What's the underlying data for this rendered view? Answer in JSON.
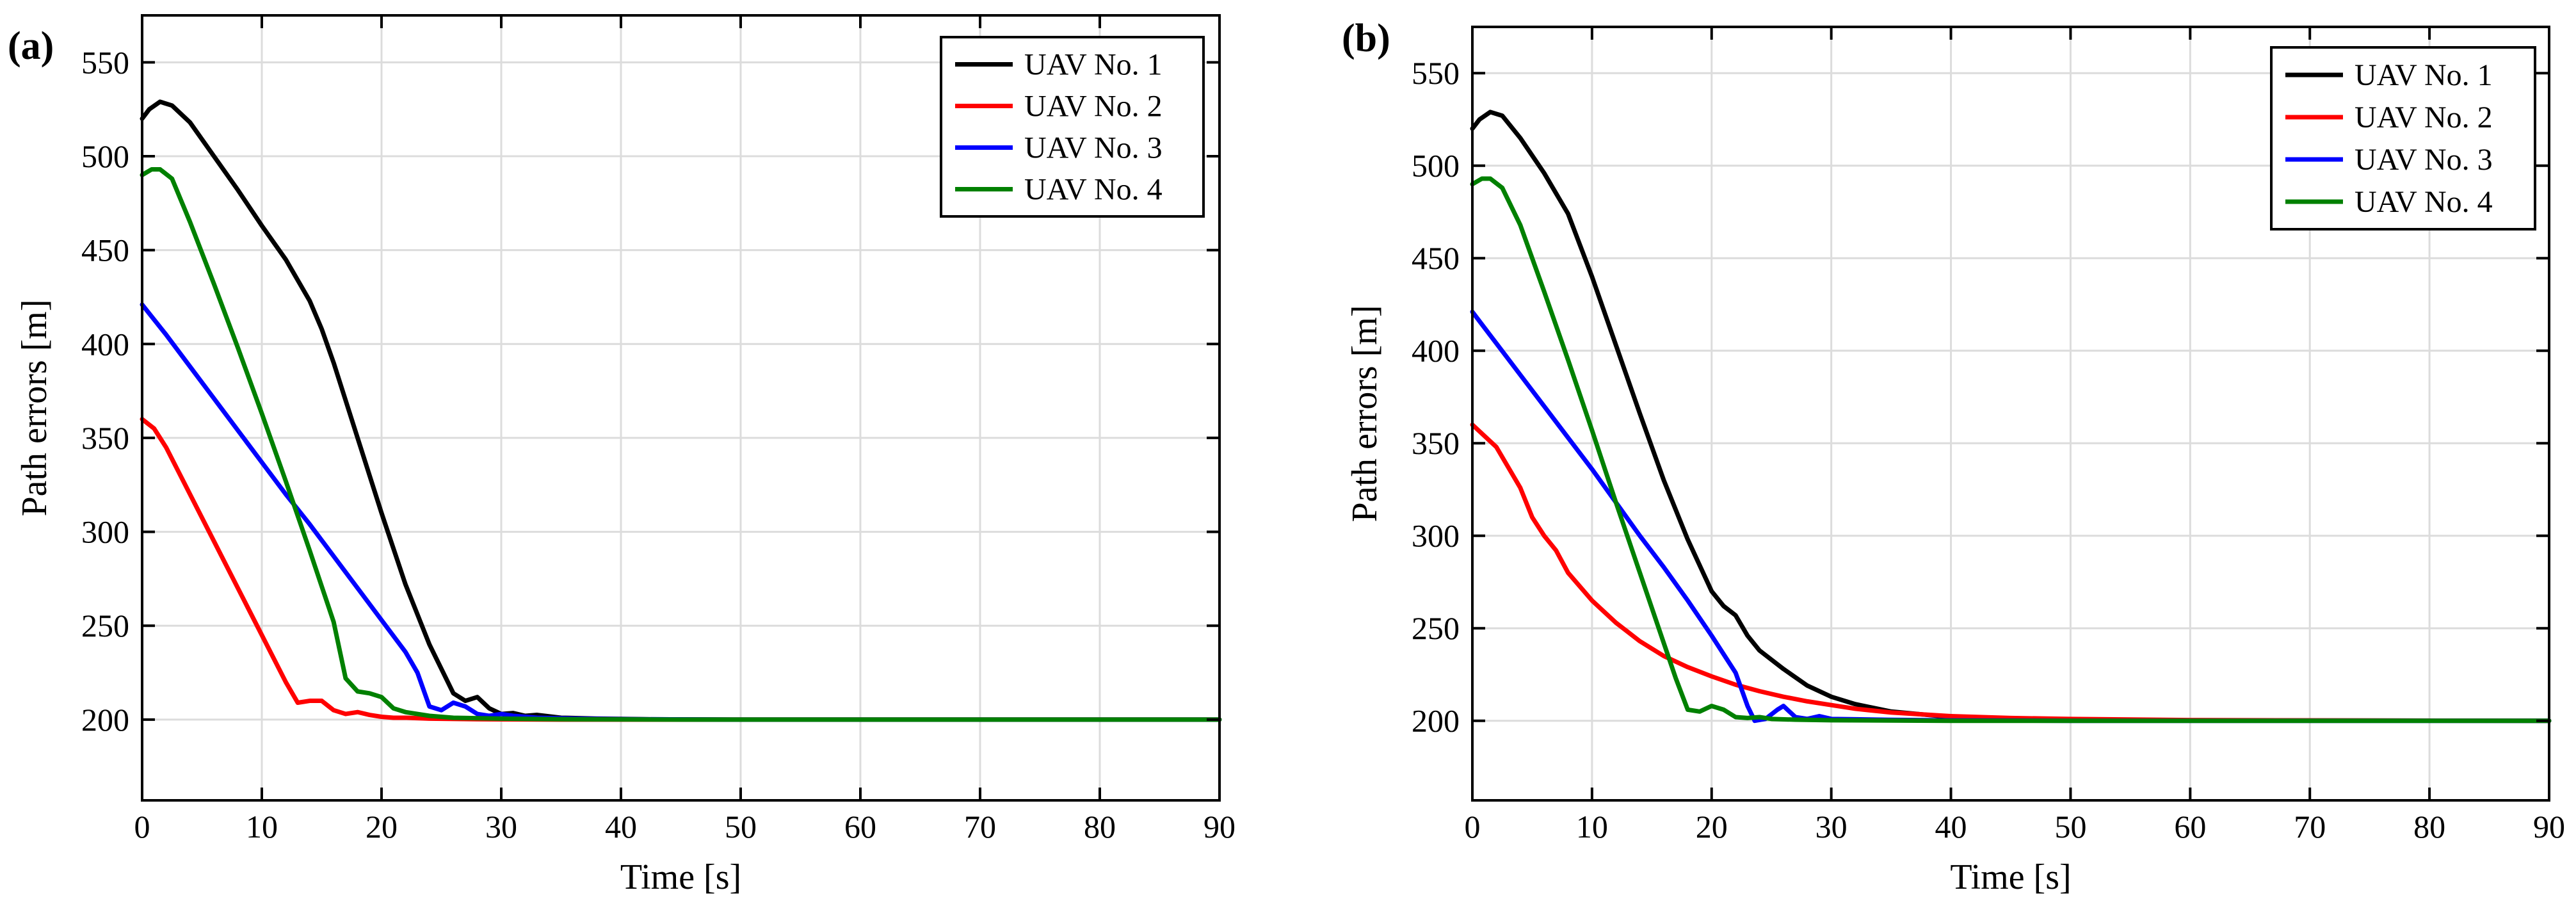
{
  "chart_data": [
    {
      "type": "line",
      "panel_label": "(a)",
      "xlabel": "Time [s]",
      "ylabel": "Path errors [m]",
      "xlim": [
        0,
        90
      ],
      "ylim": [
        157,
        575
      ],
      "xticks": [
        0,
        10,
        20,
        30,
        40,
        50,
        60,
        70,
        80,
        90
      ],
      "yticks": [
        200,
        250,
        300,
        350,
        400,
        450,
        500,
        550
      ],
      "grid": true,
      "legend_position": "top-right",
      "series": [
        {
          "name": "UAV No. 1",
          "color": "#000000",
          "points": [
            [
              0,
              520
            ],
            [
              0.6,
              525
            ],
            [
              1.5,
              529
            ],
            [
              2.5,
              527
            ],
            [
              4,
              518
            ],
            [
              6,
              500
            ],
            [
              8,
              482
            ],
            [
              10,
              463
            ],
            [
              12,
              445
            ],
            [
              14,
              423
            ],
            [
              15,
              408
            ],
            [
              16,
              390
            ],
            [
              18,
              350
            ],
            [
              20,
              310
            ],
            [
              22,
              272
            ],
            [
              24,
              240
            ],
            [
              26,
              214
            ],
            [
              27,
              210
            ],
            [
              28,
              212
            ],
            [
              29,
              206
            ],
            [
              30,
              203
            ],
            [
              31,
              203.5
            ],
            [
              32,
              202
            ],
            [
              33,
              202.5
            ],
            [
              35,
              201
            ],
            [
              38,
              200.5
            ],
            [
              42,
              200.2
            ],
            [
              50,
              200
            ],
            [
              90,
              200
            ]
          ]
        },
        {
          "name": "UAV No. 2",
          "color": "#ff0000",
          "points": [
            [
              0,
              360
            ],
            [
              1,
              355
            ],
            [
              2,
              345
            ],
            [
              4,
              320
            ],
            [
              6,
              295
            ],
            [
              8,
              270
            ],
            [
              10,
              245
            ],
            [
              12,
              220
            ],
            [
              13,
              209
            ],
            [
              14,
              210
            ],
            [
              15,
              210
            ],
            [
              16,
              205
            ],
            [
              17,
              203
            ],
            [
              18,
              204
            ],
            [
              19,
              202.5
            ],
            [
              20,
              201.5
            ],
            [
              21,
              201
            ],
            [
              22,
              201
            ],
            [
              24,
              200.5
            ],
            [
              28,
              200.2
            ],
            [
              35,
              200
            ],
            [
              90,
              200
            ]
          ]
        },
        {
          "name": "UAV No. 3",
          "color": "#0000ff",
          "points": [
            [
              0,
              421
            ],
            [
              2,
              405
            ],
            [
              4,
              388
            ],
            [
              6,
              371
            ],
            [
              8,
              354
            ],
            [
              10,
              337
            ],
            [
              12,
              320
            ],
            [
              14,
              304
            ],
            [
              16,
              287
            ],
            [
              18,
              270
            ],
            [
              20,
              253
            ],
            [
              22,
              236
            ],
            [
              23,
              225
            ],
            [
              24,
              207
            ],
            [
              25,
              205
            ],
            [
              26,
              209
            ],
            [
              27,
              207
            ],
            [
              28,
              203
            ],
            [
              29,
              202
            ],
            [
              30,
              203
            ],
            [
              31,
              202
            ],
            [
              33,
              201
            ],
            [
              36,
              200.5
            ],
            [
              40,
              200.2
            ],
            [
              50,
              200
            ],
            [
              90,
              200
            ]
          ]
        },
        {
          "name": "UAV No. 4",
          "color": "#008000",
          "points": [
            [
              0,
              490
            ],
            [
              0.8,
              493
            ],
            [
              1.5,
              493
            ],
            [
              2.5,
              488
            ],
            [
              4,
              465
            ],
            [
              6,
              432
            ],
            [
              8,
              398
            ],
            [
              10,
              363
            ],
            [
              12,
              327
            ],
            [
              14,
              290
            ],
            [
              16,
              252
            ],
            [
              17,
              222
            ],
            [
              18,
              215
            ],
            [
              19,
              214
            ],
            [
              20,
              212
            ],
            [
              21,
              206
            ],
            [
              22,
              204
            ],
            [
              23,
              203
            ],
            [
              24,
              202
            ],
            [
              26,
              201
            ],
            [
              30,
              200.5
            ],
            [
              35,
              200.2
            ],
            [
              45,
              200
            ],
            [
              90,
              200
            ]
          ]
        }
      ]
    },
    {
      "type": "line",
      "panel_label": "(b)",
      "xlabel": "Time [s]",
      "ylabel": "Path errors [m]",
      "xlim": [
        0,
        90
      ],
      "ylim": [
        157,
        575
      ],
      "xticks": [
        0,
        10,
        20,
        30,
        40,
        50,
        60,
        70,
        80,
        90
      ],
      "yticks": [
        200,
        250,
        300,
        350,
        400,
        450,
        500,
        550
      ],
      "grid": true,
      "legend_position": "top-right",
      "series": [
        {
          "name": "UAV No. 1",
          "color": "#000000",
          "points": [
            [
              0,
              520
            ],
            [
              0.6,
              525
            ],
            [
              1.5,
              529
            ],
            [
              2.5,
              527
            ],
            [
              4,
              515
            ],
            [
              6,
              496
            ],
            [
              8,
              474
            ],
            [
              10,
              440
            ],
            [
              12,
              403
            ],
            [
              14,
              366
            ],
            [
              16,
              330
            ],
            [
              18,
              298
            ],
            [
              20,
              270
            ],
            [
              21,
              262
            ],
            [
              22,
              257
            ],
            [
              23,
              246
            ],
            [
              24,
              238
            ],
            [
              26,
              228
            ],
            [
              28,
              219
            ],
            [
              30,
              213
            ],
            [
              32,
              209
            ],
            [
              35,
              205
            ],
            [
              40,
              202
            ],
            [
              45,
              201
            ],
            [
              50,
              200.5
            ],
            [
              60,
              200.2
            ],
            [
              90,
              200
            ]
          ]
        },
        {
          "name": "UAV No. 2",
          "color": "#ff0000",
          "points": [
            [
              0,
              360
            ],
            [
              2,
              348
            ],
            [
              4,
              326
            ],
            [
              5,
              310
            ],
            [
              6,
              300
            ],
            [
              7,
              292
            ],
            [
              8,
              280
            ],
            [
              10,
              265
            ],
            [
              12,
              253
            ],
            [
              14,
              243
            ],
            [
              16,
              235
            ],
            [
              18,
              229
            ],
            [
              20,
              224
            ],
            [
              22,
              219.5
            ],
            [
              24,
              216
            ],
            [
              26,
              213
            ],
            [
              28,
              210.5
            ],
            [
              30,
              208.5
            ],
            [
              32,
              206.5
            ],
            [
              35,
              204.5
            ],
            [
              40,
              202.5
            ],
            [
              45,
              201.5
            ],
            [
              50,
              201
            ],
            [
              60,
              200.4
            ],
            [
              70,
              200.2
            ],
            [
              90,
              200
            ]
          ]
        },
        {
          "name": "UAV No. 3",
          "color": "#0000ff",
          "points": [
            [
              0,
              421
            ],
            [
              2,
              404
            ],
            [
              4,
              387
            ],
            [
              6,
              370
            ],
            [
              8,
              353
            ],
            [
              10,
              336
            ],
            [
              12,
              318
            ],
            [
              14,
              300
            ],
            [
              16,
              283
            ],
            [
              18,
              265
            ],
            [
              20,
              246
            ],
            [
              21,
              236
            ],
            [
              22,
              226
            ],
            [
              23,
              208
            ],
            [
              23.6,
              200
            ],
            [
              24.5,
              201
            ],
            [
              25.5,
              206
            ],
            [
              26,
              208
            ],
            [
              27,
              202
            ],
            [
              28,
              201
            ],
            [
              29,
              202.5
            ],
            [
              30,
              201
            ],
            [
              32,
              200.8
            ],
            [
              35,
              200.5
            ],
            [
              40,
              200.2
            ],
            [
              50,
              200
            ],
            [
              90,
              200
            ]
          ]
        },
        {
          "name": "UAV No. 4",
          "color": "#008000",
          "points": [
            [
              0,
              490
            ],
            [
              0.8,
              493
            ],
            [
              1.5,
              493
            ],
            [
              2.5,
              488
            ],
            [
              4,
              468
            ],
            [
              6,
              432
            ],
            [
              8,
              395
            ],
            [
              10,
              357
            ],
            [
              12,
              318
            ],
            [
              14,
              280
            ],
            [
              16,
              242
            ],
            [
              17,
              223
            ],
            [
              18,
              206
            ],
            [
              19,
              205
            ],
            [
              20,
              208
            ],
            [
              21,
              206
            ],
            [
              22,
              202
            ],
            [
              23,
              201.5
            ],
            [
              24,
              202
            ],
            [
              25,
              201
            ],
            [
              27,
              200.6
            ],
            [
              30,
              200.3
            ],
            [
              40,
              200
            ],
            [
              90,
              200
            ]
          ]
        }
      ]
    }
  ]
}
